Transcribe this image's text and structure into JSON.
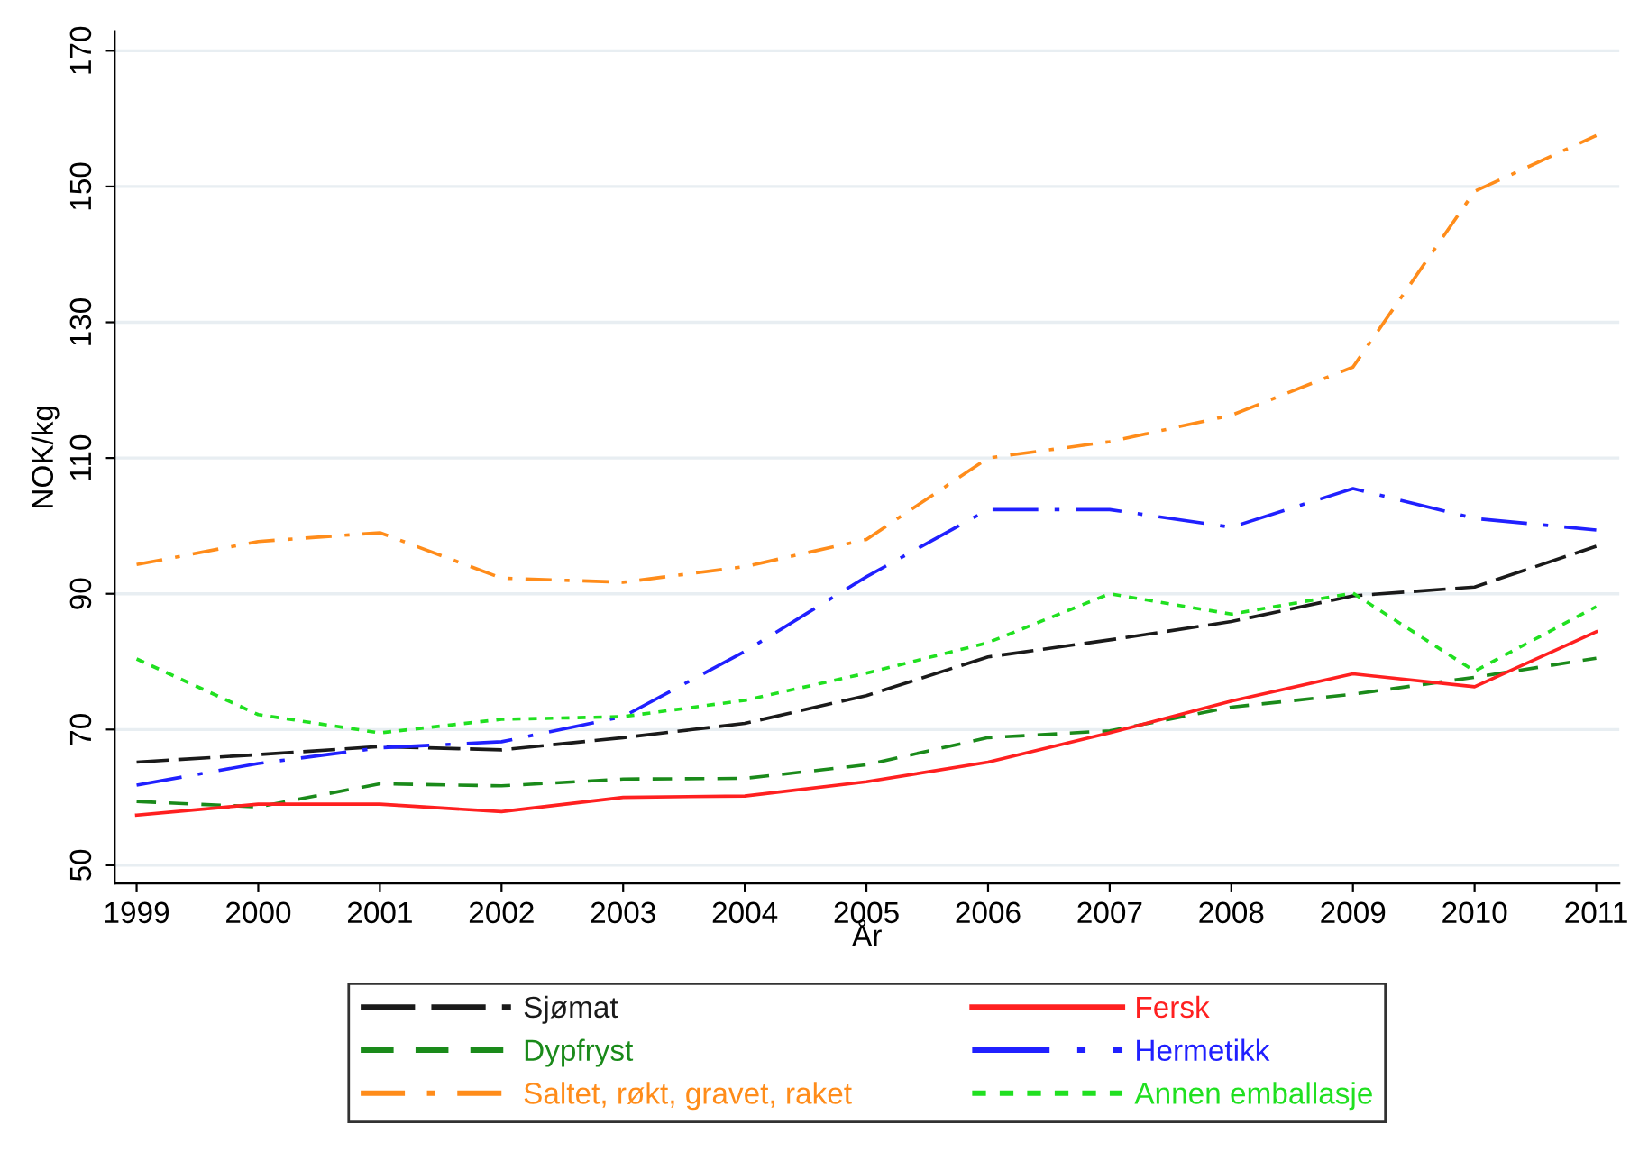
{
  "chart_data": {
    "type": "line",
    "xlabel": "År",
    "ylabel": "NOK/kg",
    "x": [
      1999,
      2000,
      2001,
      2002,
      2003,
      2004,
      2005,
      2006,
      2007,
      2008,
      2009,
      2010,
      2011
    ],
    "xlim": [
      1998.82,
      2011.19
    ],
    "xticks": [
      1999,
      2000,
      2001,
      2002,
      2003,
      2004,
      2005,
      2006,
      2007,
      2008,
      2009,
      2010,
      2011
    ],
    "ylim": [
      47.3,
      172.9
    ],
    "yticks": [
      50,
      70,
      90,
      110,
      130,
      150,
      170
    ],
    "grid": "y",
    "legend": "bottom",
    "marker": "none",
    "series": [
      {
        "name": "Sjømat",
        "color": "#1a1a1a",
        "line_style": "longdash",
        "values": [
          65.2,
          66.3,
          67.5,
          67.0,
          68.8,
          70.9,
          75.0,
          80.7,
          83.2,
          85.9,
          89.7,
          91.0,
          97.0
        ]
      },
      {
        "name": "Dypfryst",
        "color": "#1a8a1a",
        "line_style": "dashed",
        "values": [
          59.4,
          58.6,
          62.0,
          61.7,
          62.7,
          62.8,
          64.8,
          68.8,
          69.8,
          73.3,
          75.2,
          77.7,
          80.5
        ]
      },
      {
        "name": "Saltet, røkt, gravet, raket",
        "color": "#ff8c1a",
        "line_style": "dashdot",
        "values": [
          94.3,
          97.7,
          99.0,
          92.3,
          91.7,
          94.0,
          98.0,
          110.0,
          112.4,
          116.3,
          123.4,
          149.3,
          157.5
        ]
      },
      {
        "name": "Fersk",
        "color": "#ff2020",
        "line_style": "solid",
        "values": [
          57.4,
          59.0,
          59.0,
          57.9,
          60.0,
          60.2,
          62.3,
          65.2,
          69.5,
          74.2,
          78.2,
          76.3,
          84.4
        ]
      },
      {
        "name": "Hermetikk",
        "color": "#2020ff",
        "line_style": "longdashdot",
        "values": [
          61.8,
          65.0,
          67.3,
          68.2,
          71.9,
          81.5,
          92.5,
          102.4,
          102.4,
          99.8,
          105.5,
          101.1,
          99.4
        ]
      },
      {
        "name": "Annen emballasje",
        "color": "#20e020",
        "line_style": "dotted",
        "values": [
          80.4,
          72.2,
          69.5,
          71.5,
          71.9,
          74.3,
          78.3,
          82.8,
          90.0,
          87.0,
          90.1,
          78.6,
          88.1
        ]
      }
    ]
  }
}
